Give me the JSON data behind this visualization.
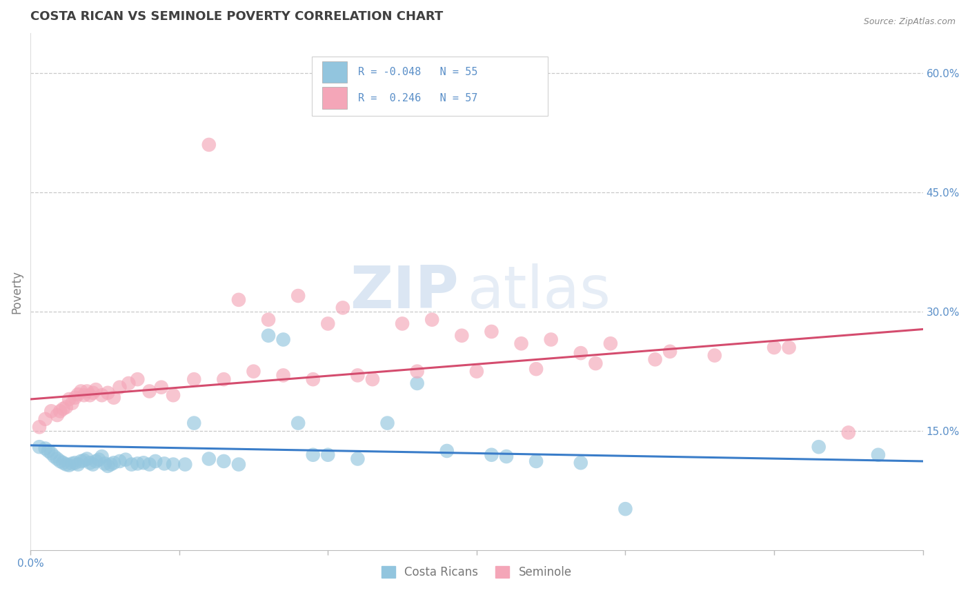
{
  "title": "COSTA RICAN VS SEMINOLE POVERTY CORRELATION CHART",
  "source_text": "Source: ZipAtlas.com",
  "ylabel": "Poverty",
  "watermark": "ZIPatlas",
  "xlim": [
    0.0,
    0.3
  ],
  "ylim": [
    0.0,
    0.65
  ],
  "xtick_positions": [
    0.0,
    0.05,
    0.1,
    0.15,
    0.2,
    0.25,
    0.3
  ],
  "xtick_labels_show": {
    "0.0": "0.0%",
    "0.30": "30.0%"
  },
  "yticks_right": [
    0.15,
    0.3,
    0.45,
    0.6
  ],
  "yticklabels_right": [
    "15.0%",
    "30.0%",
    "45.0%",
    "60.0%"
  ],
  "blue_color": "#92c5de",
  "pink_color": "#f4a6b8",
  "blue_line_color": "#3a7dc9",
  "pink_line_color": "#d44c6e",
  "blue_line_x": [
    0.0,
    0.3
  ],
  "blue_line_y": [
    0.132,
    0.112
  ],
  "pink_line_x": [
    0.0,
    0.3
  ],
  "pink_line_y": [
    0.19,
    0.278
  ],
  "grid_color": "#c8c8c8",
  "background_color": "#ffffff",
  "title_fontsize": 13,
  "title_color": "#404040",
  "source_color": "#888888",
  "tick_label_color": "#5a8fc8",
  "ylabel_color": "#808080",
  "blue_scatter_x": [
    0.003,
    0.005,
    0.006,
    0.007,
    0.008,
    0.009,
    0.01,
    0.011,
    0.012,
    0.013,
    0.014,
    0.015,
    0.016,
    0.017,
    0.018,
    0.019,
    0.02,
    0.021,
    0.022,
    0.023,
    0.024,
    0.025,
    0.026,
    0.027,
    0.028,
    0.03,
    0.032,
    0.034,
    0.036,
    0.038,
    0.04,
    0.042,
    0.045,
    0.048,
    0.052,
    0.055,
    0.06,
    0.065,
    0.07,
    0.08,
    0.085,
    0.09,
    0.095,
    0.1,
    0.11,
    0.12,
    0.13,
    0.14,
    0.155,
    0.16,
    0.17,
    0.185,
    0.2,
    0.265,
    0.285
  ],
  "blue_scatter_y": [
    0.13,
    0.128,
    0.125,
    0.122,
    0.118,
    0.115,
    0.112,
    0.11,
    0.108,
    0.107,
    0.109,
    0.11,
    0.108,
    0.112,
    0.113,
    0.115,
    0.11,
    0.108,
    0.112,
    0.114,
    0.118,
    0.109,
    0.106,
    0.108,
    0.11,
    0.112,
    0.114,
    0.108,
    0.109,
    0.11,
    0.108,
    0.112,
    0.109,
    0.108,
    0.108,
    0.16,
    0.115,
    0.112,
    0.108,
    0.27,
    0.265,
    0.16,
    0.12,
    0.12,
    0.115,
    0.16,
    0.21,
    0.125,
    0.12,
    0.118,
    0.112,
    0.11,
    0.052,
    0.13,
    0.12
  ],
  "pink_scatter_x": [
    0.003,
    0.005,
    0.007,
    0.009,
    0.01,
    0.011,
    0.012,
    0.013,
    0.014,
    0.015,
    0.016,
    0.017,
    0.018,
    0.019,
    0.02,
    0.021,
    0.022,
    0.024,
    0.026,
    0.028,
    0.03,
    0.033,
    0.036,
    0.04,
    0.044,
    0.048,
    0.055,
    0.065,
    0.075,
    0.085,
    0.095,
    0.11,
    0.13,
    0.15,
    0.17,
    0.19,
    0.21,
    0.23,
    0.25,
    0.07,
    0.09,
    0.105,
    0.125,
    0.145,
    0.165,
    0.185,
    0.255,
    0.1,
    0.135,
    0.155,
    0.175,
    0.195,
    0.215,
    0.06,
    0.08,
    0.115,
    0.275
  ],
  "pink_scatter_y": [
    0.155,
    0.165,
    0.175,
    0.17,
    0.175,
    0.178,
    0.18,
    0.19,
    0.185,
    0.192,
    0.196,
    0.2,
    0.195,
    0.2,
    0.195,
    0.198,
    0.202,
    0.195,
    0.198,
    0.192,
    0.205,
    0.21,
    0.215,
    0.2,
    0.205,
    0.195,
    0.215,
    0.215,
    0.225,
    0.22,
    0.215,
    0.22,
    0.225,
    0.225,
    0.228,
    0.235,
    0.24,
    0.245,
    0.255,
    0.315,
    0.32,
    0.305,
    0.285,
    0.27,
    0.26,
    0.248,
    0.255,
    0.285,
    0.29,
    0.275,
    0.265,
    0.26,
    0.25,
    0.51,
    0.29,
    0.215,
    0.148
  ]
}
